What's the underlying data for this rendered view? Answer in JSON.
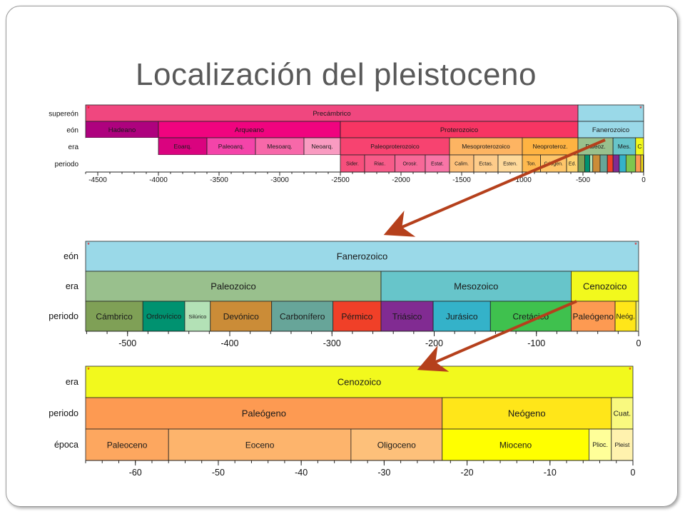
{
  "slide": {
    "title": "Localización del pleistoceno"
  },
  "colors": {
    "arrow": "#b5401c",
    "precambrico": "#f0477f",
    "fanerozoico": "#9ad9e8",
    "paleozoico": "#99c08d",
    "mesozoico": "#67c5ca",
    "cenozoico": "#f2f91d",
    "paleogeno": "#fd9a52",
    "neogeno": "#ffe619"
  },
  "chart_data": [
    {
      "type": "timeline",
      "rows": [
        "supereón",
        "eón",
        "era",
        "periodo"
      ],
      "x_unit": "Ma",
      "xlim": [
        -4600,
        0
      ],
      "ticks": [
        -4500,
        -4000,
        -3500,
        -3000,
        -2500,
        -2000,
        -1500,
        -1000,
        -500,
        0
      ],
      "tick_labels": [
        "-4500",
        "-4000",
        "-3500",
        "-3000",
        "-2500",
        "-2000",
        "-1500",
        "-1000",
        "-500",
        "0"
      ],
      "blocks": [
        {
          "row": 0,
          "start": -4600,
          "end": -541,
          "label": "Precámbrico",
          "color": "#f0477f"
        },
        {
          "row": 0,
          "start": -541,
          "end": 0,
          "label": "",
          "color": "#9ad9e8"
        },
        {
          "row": 1,
          "start": -4600,
          "end": -4000,
          "label": "Hadeano",
          "color": "#ae027e"
        },
        {
          "row": 1,
          "start": -4000,
          "end": -2500,
          "label": "Arqueano",
          "color": "#f0047f"
        },
        {
          "row": 1,
          "start": -2500,
          "end": -541,
          "label": "Proterozoico",
          "color": "#f73563"
        },
        {
          "row": 1,
          "start": -541,
          "end": 0,
          "label": "Fanerozoico",
          "color": "#9ad9e8"
        },
        {
          "row": 2,
          "start": -4600,
          "end": -4000,
          "label": "",
          "color": "#ffffff"
        },
        {
          "row": 2,
          "start": -4000,
          "end": -3600,
          "label": "Eoarq.",
          "color": "#da037f"
        },
        {
          "row": 2,
          "start": -3600,
          "end": -3200,
          "label": "Paleoarq.",
          "color": "#f444a9"
        },
        {
          "row": 2,
          "start": -3200,
          "end": -2800,
          "label": "Mesoarq.",
          "color": "#f768a9"
        },
        {
          "row": 2,
          "start": -2800,
          "end": -2500,
          "label": "Neoarq.",
          "color": "#f99bc1"
        },
        {
          "row": 2,
          "start": -2500,
          "end": -1600,
          "label": "Paleoproterozoico",
          "color": "#f74370"
        },
        {
          "row": 2,
          "start": -1600,
          "end": -1000,
          "label": "Mesoproterozoico",
          "color": "#fdb462"
        },
        {
          "row": 2,
          "start": -1000,
          "end": -541,
          "label": "Neoproteroz.",
          "color": "#feb342"
        },
        {
          "row": 2,
          "start": -541,
          "end": -252,
          "label": "Paleoz.",
          "color": "#99c08d"
        },
        {
          "row": 2,
          "start": -252,
          "end": -66,
          "label": "Mes.",
          "color": "#67c5ca"
        },
        {
          "row": 2,
          "start": -66,
          "end": 0,
          "label": "C",
          "color": "#f2f91d"
        },
        {
          "row": 3,
          "start": -4600,
          "end": -2500,
          "label": "",
          "color": "#ffffff"
        },
        {
          "row": 3,
          "start": -2500,
          "end": -2300,
          "label": "Sider.",
          "color": "#f74f7c"
        },
        {
          "row": 3,
          "start": -2300,
          "end": -2050,
          "label": "Riac.",
          "color": "#f75b89"
        },
        {
          "row": 3,
          "start": -2050,
          "end": -1800,
          "label": "Orosir.",
          "color": "#f76898"
        },
        {
          "row": 3,
          "start": -1800,
          "end": -1600,
          "label": "Estat.",
          "color": "#f875a7"
        },
        {
          "row": 3,
          "start": -1600,
          "end": -1400,
          "label": "Calim.",
          "color": "#fdc07a"
        },
        {
          "row": 3,
          "start": -1400,
          "end": -1200,
          "label": "Ectas.",
          "color": "#fecc8a"
        },
        {
          "row": 3,
          "start": -1200,
          "end": -1000,
          "label": "Esten.",
          "color": "#fed99a"
        },
        {
          "row": 3,
          "start": -1000,
          "end": -850,
          "label": "Ton.",
          "color": "#feb94e"
        },
        {
          "row": 3,
          "start": -850,
          "end": -635,
          "label": "Criogen.",
          "color": "#fec66a"
        },
        {
          "row": 3,
          "start": -635,
          "end": -541,
          "label": "Ed.",
          "color": "#fed370"
        },
        {
          "row": 3,
          "start": -541,
          "end": -485,
          "label": "",
          "color": "#7fa056"
        },
        {
          "row": 3,
          "start": -485,
          "end": -444,
          "label": "",
          "color": "#009270"
        },
        {
          "row": 3,
          "start": -444,
          "end": -419,
          "label": "",
          "color": "#b3e1b6"
        },
        {
          "row": 3,
          "start": -419,
          "end": -359,
          "label": "",
          "color": "#cb8c37"
        },
        {
          "row": 3,
          "start": -359,
          "end": -299,
          "label": "",
          "color": "#67a599"
        },
        {
          "row": 3,
          "start": -299,
          "end": -252,
          "label": "",
          "color": "#f04028"
        },
        {
          "row": 3,
          "start": -252,
          "end": -201,
          "label": "",
          "color": "#812b92"
        },
        {
          "row": 3,
          "start": -201,
          "end": -145,
          "label": "",
          "color": "#34b2c9"
        },
        {
          "row": 3,
          "start": -145,
          "end": -66,
          "label": "",
          "color": "#7fc64e"
        },
        {
          "row": 3,
          "start": -66,
          "end": -23,
          "label": "",
          "color": "#fd9a52"
        },
        {
          "row": 3,
          "start": -23,
          "end": -2.6,
          "label": "",
          "color": "#ffe619"
        },
        {
          "row": 3,
          "start": -2.6,
          "end": 0,
          "label": "",
          "color": "#f9f97f"
        }
      ]
    },
    {
      "type": "timeline",
      "rows": [
        "eón",
        "era",
        "periodo"
      ],
      "x_unit": "Ma",
      "xlim": [
        -541,
        0
      ],
      "ticks": [
        -500,
        -400,
        -300,
        -200,
        -100,
        0
      ],
      "tick_labels": [
        "-500",
        "-400",
        "-300",
        "-200",
        "-100",
        "0"
      ],
      "blocks": [
        {
          "row": 0,
          "start": -541,
          "end": 0,
          "label": "Fanerozoico",
          "color": "#9ad9e8"
        },
        {
          "row": 1,
          "start": -541,
          "end": -252,
          "label": "Paleozoico",
          "color": "#99c08d"
        },
        {
          "row": 1,
          "start": -252,
          "end": -66,
          "label": "Mesozoico",
          "color": "#67c5ca"
        },
        {
          "row": 1,
          "start": -66,
          "end": 0,
          "label": "Cenozoico",
          "color": "#f2f91d"
        },
        {
          "row": 2,
          "start": -541,
          "end": -485,
          "label": "Cámbrico",
          "color": "#7fa056"
        },
        {
          "row": 2,
          "start": -485,
          "end": -444,
          "label": "Ordovícico",
          "color": "#009270"
        },
        {
          "row": 2,
          "start": -444,
          "end": -419,
          "label": "Silúrico",
          "color": "#b3e1b6"
        },
        {
          "row": 2,
          "start": -419,
          "end": -359,
          "label": "Devónico",
          "color": "#cb8c37"
        },
        {
          "row": 2,
          "start": -359,
          "end": -299,
          "label": "Carbonífero",
          "color": "#67a599"
        },
        {
          "row": 2,
          "start": -299,
          "end": -252,
          "label": "Pérmico",
          "color": "#f04028"
        },
        {
          "row": 2,
          "start": -252,
          "end": -201,
          "label": "Triásico",
          "color": "#812b92"
        },
        {
          "row": 2,
          "start": -201,
          "end": -145,
          "label": "Jurásico",
          "color": "#34b2c9"
        },
        {
          "row": 2,
          "start": -145,
          "end": -66,
          "label": "Cretácico",
          "color": "#3fc14e"
        },
        {
          "row": 2,
          "start": -66,
          "end": -23,
          "label": "Paleógeno",
          "color": "#fd9a52"
        },
        {
          "row": 2,
          "start": -23,
          "end": -2.6,
          "label": "Neóg.",
          "color": "#ffe619"
        },
        {
          "row": 2,
          "start": -2.6,
          "end": 0,
          "label": "",
          "color": "#f9f97f"
        }
      ]
    },
    {
      "type": "timeline",
      "rows": [
        "era",
        "periodo",
        "época"
      ],
      "x_unit": "Ma",
      "xlim": [
        -66,
        0
      ],
      "ticks": [
        -60,
        -50,
        -40,
        -30,
        -20,
        -10,
        0
      ],
      "tick_labels": [
        "-60",
        "-50",
        "-40",
        "-30",
        "-20",
        "-10",
        "0"
      ],
      "blocks": [
        {
          "row": 0,
          "start": -66,
          "end": 0,
          "label": "Cenozoico",
          "color": "#f2f91d"
        },
        {
          "row": 1,
          "start": -66,
          "end": -23,
          "label": "Paleógeno",
          "color": "#fd9a52"
        },
        {
          "row": 1,
          "start": -23,
          "end": -2.6,
          "label": "Neógeno",
          "color": "#ffe619"
        },
        {
          "row": 1,
          "start": -2.6,
          "end": 0,
          "label": "Cuat.",
          "color": "#f9f97f"
        },
        {
          "row": 2,
          "start": -66,
          "end": -56,
          "label": "Paleoceno",
          "color": "#fda75f"
        },
        {
          "row": 2,
          "start": -56,
          "end": -34,
          "label": "Eoceno",
          "color": "#fdb46c"
        },
        {
          "row": 2,
          "start": -34,
          "end": -23,
          "label": "Oligoceno",
          "color": "#fdc07a"
        },
        {
          "row": 2,
          "start": -23,
          "end": -5.3,
          "label": "Mioceno",
          "color": "#ffff00"
        },
        {
          "row": 2,
          "start": -5.3,
          "end": -2.6,
          "label": "Plioc.",
          "color": "#ffff99"
        },
        {
          "row": 2,
          "start": -2.6,
          "end": 0,
          "label": "Pleist",
          "color": "#fff2ae"
        }
      ]
    }
  ]
}
